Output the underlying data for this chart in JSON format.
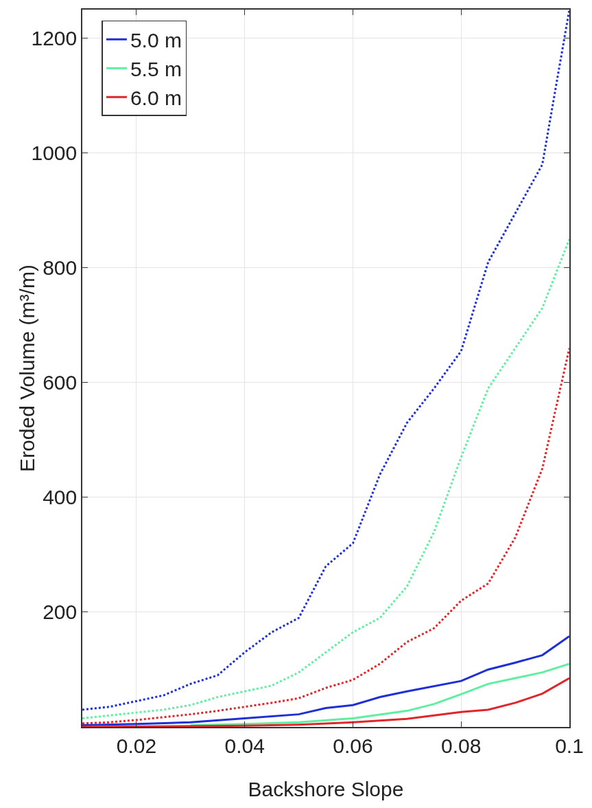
{
  "chart_data": {
    "type": "line",
    "xlabel": "Backshore Slope",
    "ylabel": "Eroded Volume (m³/m)",
    "xlim": [
      0.01,
      0.1
    ],
    "xticks": [
      0.02,
      0.04,
      0.06,
      0.08,
      0.1
    ],
    "ylim": [
      0,
      1250
    ],
    "yticks": [
      200,
      400,
      600,
      800,
      1000,
      1200
    ],
    "grid": true,
    "legend": "top left",
    "marker": "none",
    "series": [
      {
        "name": "5.0 m",
        "color": "#1f2fd6",
        "line_style": "solid",
        "x": [
          0.01,
          0.02,
          0.03,
          0.04,
          0.05,
          0.055,
          0.06,
          0.065,
          0.07,
          0.08,
          0.085,
          0.09,
          0.095,
          0.1
        ],
        "values": [
          3,
          5,
          8,
          15,
          22,
          33,
          38,
          52,
          62,
          80,
          100,
          112,
          125,
          158
        ]
      },
      {
        "name": "5.5 m",
        "color": "#5ef0a0",
        "line_style": "solid",
        "x": [
          0.03,
          0.04,
          0.05,
          0.06,
          0.07,
          0.075,
          0.08,
          0.085,
          0.09,
          0.095,
          0.1
        ],
        "values": [
          3,
          5,
          8,
          15,
          28,
          40,
          57,
          75,
          85,
          95,
          110
        ]
      },
      {
        "name": "6.0 m",
        "color": "#e0262a",
        "line_style": "solid",
        "x": [
          0.01,
          0.04,
          0.05,
          0.06,
          0.07,
          0.075,
          0.08,
          0.085,
          0.09,
          0.095,
          0.1
        ],
        "values": [
          0,
          2,
          4,
          8,
          14,
          20,
          26,
          30,
          42,
          58,
          85
        ]
      },
      {
        "color": "#1f2fd6",
        "line_style": "dotted",
        "x": [
          0.01,
          0.015,
          0.02,
          0.025,
          0.03,
          0.035,
          0.04,
          0.045,
          0.05,
          0.055,
          0.06,
          0.065,
          0.07,
          0.075,
          0.08,
          0.085,
          0.09,
          0.095,
          0.1
        ],
        "values": [
          30,
          35,
          45,
          55,
          75,
          90,
          130,
          165,
          190,
          280,
          320,
          440,
          530,
          590,
          655,
          810,
          895,
          980,
          1250
        ]
      },
      {
        "color": "#5ef0a0",
        "line_style": "dotted",
        "x": [
          0.01,
          0.015,
          0.02,
          0.025,
          0.03,
          0.035,
          0.04,
          0.045,
          0.05,
          0.055,
          0.06,
          0.065,
          0.07,
          0.075,
          0.08,
          0.085,
          0.09,
          0.095,
          0.1
        ],
        "values": [
          15,
          20,
          25,
          30,
          38,
          52,
          62,
          72,
          95,
          130,
          165,
          190,
          245,
          340,
          470,
          590,
          660,
          730,
          850
        ]
      },
      {
        "color": "#e0262a",
        "line_style": "dotted",
        "x": [
          0.01,
          0.015,
          0.02,
          0.025,
          0.03,
          0.035,
          0.04,
          0.045,
          0.05,
          0.055,
          0.06,
          0.065,
          0.07,
          0.075,
          0.08,
          0.085,
          0.09,
          0.095,
          0.1
        ],
        "values": [
          6,
          8,
          12,
          17,
          22,
          28,
          35,
          42,
          50,
          68,
          82,
          110,
          148,
          172,
          220,
          250,
          330,
          450,
          660
        ]
      }
    ]
  }
}
